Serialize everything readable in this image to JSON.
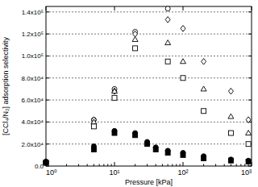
{
  "chart_data": {
    "type": "scatter",
    "x_label": "Pressure [kPa]",
    "y_label": "[CCl₄/N₂] adsorption selectivity",
    "log": "x",
    "grid": true,
    "xlim": [
      1,
      1000
    ],
    "xticks": [
      {
        "value": 1,
        "label": "10⁰"
      },
      {
        "value": 10,
        "label": "10¹"
      },
      {
        "value": 100,
        "label": "10²"
      },
      {
        "value": 1000,
        "label": "10³"
      }
    ],
    "ylim": [
      0,
      145000
    ],
    "yticks": [
      {
        "value": 0,
        "label": "0.0"
      },
      {
        "value": 20000,
        "label": "2.0x10⁴"
      },
      {
        "value": 40000,
        "label": "4.0x10⁴"
      },
      {
        "value": 60000,
        "label": "6.0x10⁴"
      },
      {
        "value": 80000,
        "label": "8.0x10⁴"
      },
      {
        "value": 100000,
        "label": "1.0x10⁵"
      },
      {
        "value": 120000,
        "label": "1.2x10⁵"
      },
      {
        "value": 140000,
        "label": "1.4x10⁵"
      }
    ],
    "x": [
      1,
      5,
      10,
      20,
      30,
      40,
      60,
      100,
      200,
      500,
      900
    ],
    "series": [
      {
        "marker": "open-circle",
        "color": "#000000",
        "values": [
          4000,
          42000,
          70000,
          122000,
          null,
          null,
          143000,
          null,
          null,
          null,
          null
        ]
      },
      {
        "marker": "open-diamond",
        "color": "#000000",
        "values": [
          4000,
          42000,
          68000,
          120000,
          null,
          null,
          133000,
          125000,
          95000,
          68000,
          42000
        ]
      },
      {
        "marker": "open-triangle",
        "color": "#000000",
        "values": [
          4000,
          40000,
          68000,
          115000,
          null,
          null,
          112000,
          95000,
          70000,
          45000,
          30000
        ]
      },
      {
        "marker": "open-square",
        "color": "#000000",
        "values": [
          3000,
          36000,
          62000,
          107000,
          null,
          null,
          95000,
          80000,
          50000,
          30000,
          20000
        ]
      },
      {
        "marker": "circle",
        "color": "#000000",
        "values": [
          4000,
          18000,
          32000,
          30000,
          22000,
          17000,
          14000,
          12000,
          9000,
          6000,
          5000
        ]
      },
      {
        "marker": "square",
        "color": "#000000",
        "values": [
          3000,
          15000,
          30000,
          28000,
          20000,
          15000,
          12000,
          10000,
          7000,
          5000,
          4000
        ]
      }
    ]
  }
}
